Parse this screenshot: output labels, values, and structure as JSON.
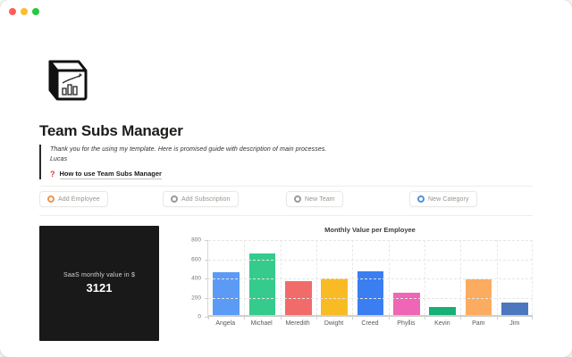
{
  "window": {
    "controls": [
      {
        "name": "close",
        "color": "#ff5f57"
      },
      {
        "name": "minimize",
        "color": "#febc2e"
      },
      {
        "name": "zoom",
        "color": "#28c840"
      }
    ]
  },
  "page": {
    "icon": "cube-with-bar-chart",
    "title": "Team Subs Manager",
    "quote": {
      "line1": "Thank you for the using my template. Here is promised guide with description of main processes.",
      "line2": "Lucas"
    },
    "guide_link": {
      "icon_glyph": "?",
      "icon_color": "#d4403b",
      "label": "How to use Team Subs Manager"
    }
  },
  "buttons": [
    {
      "label": "Add Employee",
      "icon": "gear-icon",
      "color": "#f0954f"
    },
    {
      "label": "Add Subscription",
      "icon": "gear-icon",
      "color": "#9b9a97"
    },
    {
      "label": "New Team",
      "icon": "gear-icon",
      "color": "#9b9a97"
    },
    {
      "label": "New Category",
      "icon": "gear-icon",
      "color": "#4e94d6"
    }
  ],
  "stat_card": {
    "label": "SaaS monthly value in $",
    "value": "3121",
    "background": "#191919"
  },
  "chart_data": {
    "type": "bar",
    "title": "Monthly Value per Employee",
    "categories": [
      "Angela",
      "Michael",
      "Meredith",
      "Dwight",
      "Creed",
      "Phyllis",
      "Kevin",
      "Pam",
      "Jim"
    ],
    "values": [
      445,
      640,
      350,
      380,
      455,
      230,
      80,
      370,
      130
    ],
    "colors": [
      "#5B9BF5",
      "#35CB8D",
      "#F16B6B",
      "#F9BB24",
      "#3B7EF2",
      "#EE66B5",
      "#17B077",
      "#FBAC60",
      "#4C77BE"
    ],
    "xlabel": "",
    "ylabel": "",
    "ylim": [
      0,
      800
    ],
    "yticks": [
      0,
      200,
      400,
      600,
      800
    ],
    "grid": "dashed",
    "legend": "none"
  }
}
